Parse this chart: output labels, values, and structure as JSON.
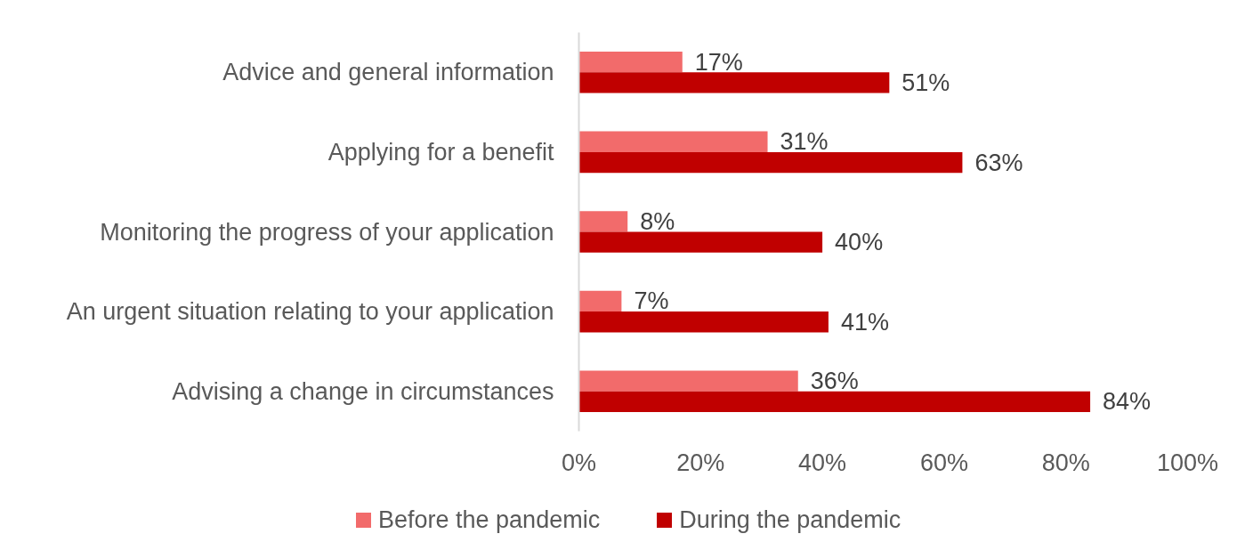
{
  "chart_data": {
    "type": "bar",
    "orientation": "horizontal",
    "categories": [
      "Advice and general information",
      "Applying for a benefit",
      "Monitoring the progress of your application",
      "An urgent situation relating to your application",
      "Advising a change in circumstances"
    ],
    "series": [
      {
        "name": "Before the pandemic",
        "color": "#f26b6b",
        "values": [
          17,
          31,
          8,
          7,
          36
        ],
        "value_labels": [
          "17%",
          "31%",
          "8%",
          "7%",
          "36%"
        ]
      },
      {
        "name": "During the pandemic",
        "color": "#c00000",
        "values": [
          51,
          63,
          40,
          41,
          84
        ],
        "value_labels": [
          "51%",
          "63%",
          "40%",
          "41%",
          "84%"
        ]
      }
    ],
    "xlim": [
      0,
      100
    ],
    "xticks": [
      {
        "value": 0,
        "label": "0%"
      },
      {
        "value": 20,
        "label": "20%"
      },
      {
        "value": 40,
        "label": "40%"
      },
      {
        "value": 60,
        "label": "60%"
      },
      {
        "value": 80,
        "label": "80%"
      },
      {
        "value": 100,
        "label": "100%"
      }
    ],
    "grid": false,
    "legend": "bottom"
  }
}
